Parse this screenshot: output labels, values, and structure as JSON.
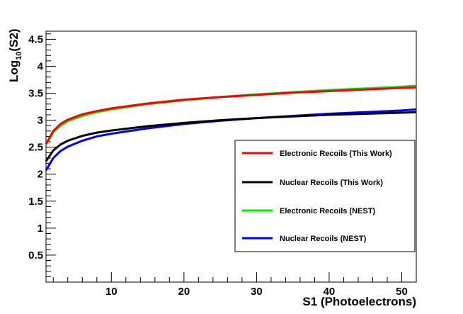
{
  "chart_data": {
    "type": "line",
    "title": "",
    "xlabel": "S1 (Photoelectrons)",
    "ylabel": {
      "base": "Log",
      "sub": "10",
      "rest": "(S2)"
    },
    "xlim": [
      1,
      52
    ],
    "ylim": [
      0,
      4.65
    ],
    "xticks": [
      "10",
      "20",
      "30",
      "40",
      "50"
    ],
    "yticks": [
      "0.5",
      "1",
      "1.5",
      "2",
      "2.5",
      "3",
      "3.5",
      "4",
      "4.5"
    ],
    "grid": false,
    "legend_position": "lower-right",
    "series": [
      {
        "name": "Electronic Recoils (This Work)",
        "color": "#ff0000",
        "x": [
          1,
          2,
          3,
          4,
          6,
          8,
          10,
          15,
          20,
          25,
          30,
          35,
          40,
          45,
          50,
          52
        ],
        "y": [
          2.56,
          2.8,
          2.93,
          3.01,
          3.11,
          3.17,
          3.22,
          3.31,
          3.38,
          3.43,
          3.47,
          3.51,
          3.54,
          3.57,
          3.6,
          3.61
        ]
      },
      {
        "name": "Nuclear Recoils (This Work)",
        "color": "#000000",
        "x": [
          1,
          2,
          3,
          4,
          6,
          8,
          10,
          15,
          20,
          25,
          30,
          35,
          40,
          45,
          50,
          52
        ],
        "y": [
          2.24,
          2.44,
          2.55,
          2.62,
          2.71,
          2.77,
          2.81,
          2.89,
          2.95,
          3.0,
          3.04,
          3.07,
          3.1,
          3.12,
          3.14,
          3.15
        ]
      },
      {
        "name": "Electronic Recoils (NEST)",
        "color": "#00ee00",
        "x": [
          1,
          2,
          3,
          4,
          6,
          8,
          10,
          15,
          20,
          25,
          30,
          35,
          40,
          45,
          50,
          52
        ],
        "y": [
          2.55,
          2.78,
          2.9,
          2.98,
          3.08,
          3.15,
          3.2,
          3.3,
          3.37,
          3.43,
          3.48,
          3.52,
          3.56,
          3.59,
          3.62,
          3.64
        ]
      },
      {
        "name": "Nuclear Recoils (NEST)",
        "color": "#0000ff",
        "x": [
          1,
          2,
          3,
          4,
          6,
          8,
          10,
          15,
          20,
          25,
          30,
          35,
          40,
          45,
          50,
          52
        ],
        "y": [
          2.07,
          2.3,
          2.43,
          2.51,
          2.62,
          2.7,
          2.75,
          2.85,
          2.93,
          2.99,
          3.04,
          3.08,
          3.12,
          3.15,
          3.18,
          3.2
        ]
      }
    ]
  }
}
